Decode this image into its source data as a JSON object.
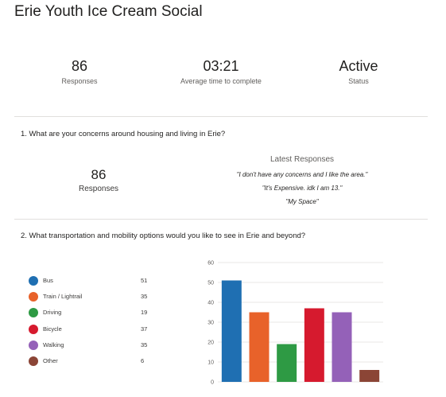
{
  "page": {
    "title": "Erie Youth Ice Cream Social"
  },
  "stats": [
    {
      "value": "86",
      "label": "Responses"
    },
    {
      "value": "03:21",
      "label": "Average time to complete"
    },
    {
      "value": "Active",
      "label": "Status"
    }
  ],
  "q1": {
    "question": "1. What are your concerns around housing and living in Erie?",
    "count": "86",
    "count_label": "Responses",
    "latest_title": "Latest Responses",
    "responses": [
      "\"I don't have any concerns and I like the area.\"",
      "\"It's Expensive. idk I am 13.\"",
      "\"My Space\""
    ]
  },
  "q2": {
    "question": "2. What transportation and mobility options would you like to see in Erie and beyond?"
  },
  "chart_data": {
    "type": "bar",
    "categories": [
      "Bus",
      "Train / Lightrail",
      "Driving",
      "Bicycle",
      "Walking",
      "Other"
    ],
    "values": [
      51,
      35,
      19,
      37,
      35,
      6
    ],
    "colors": [
      "#1f6fb2",
      "#e8622a",
      "#2e9a44",
      "#d61a2e",
      "#9461b8",
      "#8b4536"
    ],
    "ylim": [
      0,
      60
    ],
    "yticks": [
      0,
      10,
      20,
      30,
      40,
      50,
      60
    ],
    "grid": true,
    "legend_position": "left"
  }
}
